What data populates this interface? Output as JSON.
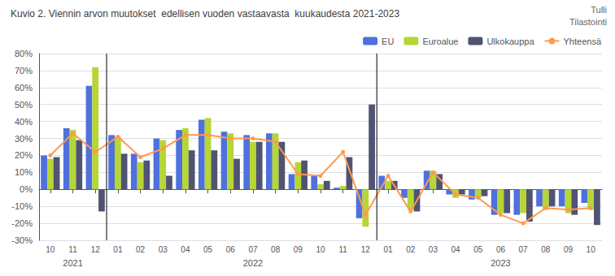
{
  "chart_data": {
    "type": "bar",
    "title": "Kuvio 2. Viennin arvon muutokset  edellisen vuoden vastaavasta  kuukaudesta 2021-2023",
    "categories": [
      "10",
      "11",
      "12",
      "01",
      "02",
      "03",
      "04",
      "05",
      "06",
      "07",
      "08",
      "09",
      "10",
      "11",
      "12",
      "01",
      "02",
      "03",
      "04",
      "05",
      "06",
      "07",
      "08",
      "09",
      "10"
    ],
    "series": [
      {
        "name": "EU",
        "values": [
          20,
          36,
          61,
          32,
          21,
          30,
          35,
          41,
          34,
          32,
          33,
          9,
          8,
          1,
          -17,
          8,
          -5,
          11,
          -3,
          -6,
          -15,
          -15,
          -10,
          -10,
          -8
        ]
      },
      {
        "name": "Euroalue",
        "values": [
          18,
          35,
          72,
          31,
          16,
          29,
          36,
          42,
          33,
          28,
          33,
          16,
          3,
          2,
          -22,
          5,
          -12,
          11,
          -5,
          -5,
          -14,
          -14,
          -12,
          -14,
          -12
        ]
      },
      {
        "name": "Ulkokauppa",
        "values": [
          19,
          29,
          -13,
          21,
          17,
          8,
          23,
          23,
          18,
          28,
          28,
          17,
          5,
          19,
          50,
          5,
          -13,
          9,
          -3,
          -4,
          -14,
          -19,
          -10,
          -15,
          -21
        ]
      },
      {
        "name": "Yhteensä",
        "type": "line",
        "marker": "circle",
        "values": [
          20,
          33,
          22,
          31,
          19,
          24,
          32,
          32,
          30,
          30,
          28,
          9,
          8,
          22,
          -15,
          8,
          -13,
          10,
          -3,
          -5,
          -15,
          -20,
          -11,
          -12,
          -11
        ]
      }
    ],
    "ylim": [
      -30,
      80
    ],
    "yticks": [
      {
        "value": -30,
        "label": "-30%"
      },
      {
        "value": -20,
        "label": "-20%"
      },
      {
        "value": -10,
        "label": "-10%"
      },
      {
        "value": 0,
        "label": "0%"
      },
      {
        "value": 10,
        "label": "10%"
      },
      {
        "value": 20,
        "label": "20%"
      },
      {
        "value": 30,
        "label": "30%"
      },
      {
        "value": 40,
        "label": "40%"
      },
      {
        "value": 50,
        "label": "50%"
      },
      {
        "value": 60,
        "label": "60%"
      },
      {
        "value": 70,
        "label": "70%"
      },
      {
        "value": 80,
        "label": "80%"
      }
    ],
    "grid": true,
    "legend": "upper right",
    "annotations": [
      {
        "text": "2021",
        "category_index": 1
      },
      {
        "text": "2022",
        "category_index": 9
      },
      {
        "text": "2023",
        "category_index": 20
      },
      {
        "text": "Tulli"
      },
      {
        "text": "Tilastointi"
      }
    ],
    "separators": [
      3,
      15
    ]
  }
}
